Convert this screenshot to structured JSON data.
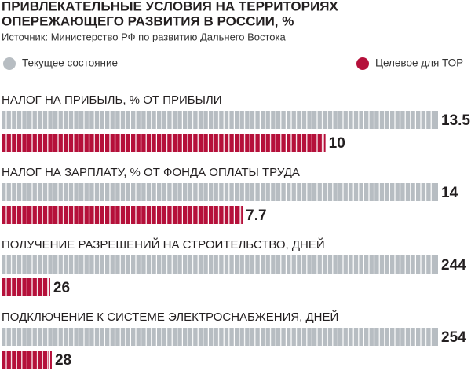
{
  "chart_data": {
    "type": "bar",
    "title": [
      "ПРИВЛЕКАТЕЛЬНЫЕ УСЛОВИЯ НА ТЕРРИТОРИЯХ",
      "ОПЕРЕЖАЮЩЕГО РАЗВИТИЯ В РОССИИ, %"
    ],
    "subtitle": "Источник: Министерство РФ по развитию Дальнего Востока",
    "categories": [
      "НАЛОГ НА ПРИБЫЛЬ, % ОТ ПРИБЫЛИ",
      "НАЛОГ НА ЗАРПЛАТУ, % ОТ ФОНДА ОПЛАТЫ ТРУДА",
      "ПОЛУЧЕНИЕ РАЗРЕШЕНИЙ НА СТРОИТЕЛЬСТВО, ДНЕЙ",
      "ПОДКЛЮЧЕНИЕ К СИСТЕМЕ ЭЛЕКТРОСНАБЖЕНИЯ, ДНЕЙ"
    ],
    "series": [
      {
        "name": "Текущее состояние",
        "color": "#b7bdc2",
        "values": [
          13.5,
          14,
          244,
          254
        ]
      },
      {
        "name": "Целевое для ТОР",
        "color": "#b5103a",
        "values": [
          10,
          7.7,
          26,
          28
        ]
      }
    ]
  }
}
